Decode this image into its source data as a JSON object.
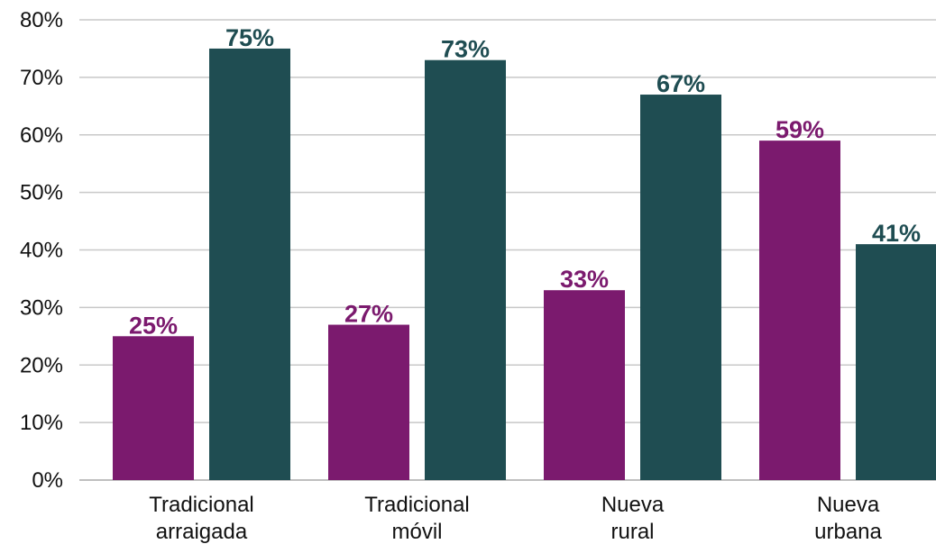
{
  "chart_data": {
    "type": "bar",
    "title": "",
    "xlabel": "",
    "ylabel": "",
    "ylim": [
      0,
      80
    ],
    "y_ticks": [
      0,
      10,
      20,
      30,
      40,
      50,
      60,
      70,
      80
    ],
    "y_tick_labels": [
      "0%",
      "10%",
      "20%",
      "30%",
      "40%",
      "50%",
      "60%",
      "70%",
      "80%"
    ],
    "grid": "horizontal",
    "legend": "none",
    "categories": [
      [
        "Tradicional",
        "arraigada"
      ],
      [
        "Tradicional",
        "móvil"
      ],
      [
        "Nueva",
        "rural"
      ],
      [
        "Nueva",
        "urbana"
      ]
    ],
    "series": [
      {
        "color": "#7b1a6e",
        "values": [
          25,
          27,
          33,
          59
        ],
        "labels": [
          "25%",
          "27%",
          "33%",
          "59%"
        ]
      },
      {
        "color": "#1f4d52",
        "values": [
          75,
          73,
          67,
          41
        ],
        "labels": [
          "75%",
          "73%",
          "67%",
          "41%"
        ]
      }
    ]
  }
}
